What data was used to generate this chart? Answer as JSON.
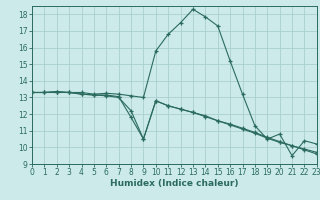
{
  "xlabel": "Humidex (Indice chaleur)",
  "bg_color": "#cceaea",
  "line_color": "#2a6b5e",
  "grid_color": "#aacfcf",
  "xlim": [
    0,
    23
  ],
  "ylim": [
    9,
    18.5
  ],
  "xticks": [
    0,
    1,
    2,
    3,
    4,
    5,
    6,
    7,
    8,
    9,
    10,
    11,
    12,
    13,
    14,
    15,
    16,
    17,
    18,
    19,
    20,
    21,
    22,
    23
  ],
  "yticks": [
    9,
    10,
    11,
    12,
    13,
    14,
    15,
    16,
    17,
    18
  ],
  "lines": [
    {
      "x": [
        0,
        1,
        2,
        3,
        4,
        5,
        6,
        7,
        8,
        9,
        10,
        11,
        12,
        13,
        14,
        15,
        16,
        17,
        18,
        19,
        20,
        21,
        22,
        23
      ],
      "y": [
        13.3,
        13.3,
        13.35,
        13.3,
        13.3,
        13.2,
        13.25,
        13.2,
        13.1,
        13.0,
        15.8,
        16.8,
        17.5,
        18.3,
        17.85,
        17.3,
        15.2,
        13.2,
        11.3,
        10.5,
        10.8,
        9.5,
        10.4,
        10.2
      ]
    },
    {
      "x": [
        0,
        1,
        2,
        3,
        4,
        5,
        6,
        7,
        8,
        9,
        10,
        11,
        12,
        13,
        14,
        15,
        16,
        17,
        18,
        19,
        20,
        21,
        22,
        23
      ],
      "y": [
        13.3,
        13.3,
        13.35,
        13.3,
        13.2,
        13.15,
        13.1,
        13.0,
        12.2,
        10.5,
        12.8,
        12.5,
        12.3,
        12.1,
        11.9,
        11.6,
        11.4,
        11.15,
        10.9,
        10.6,
        10.35,
        10.1,
        9.9,
        9.7
      ]
    },
    {
      "x": [
        0,
        1,
        2,
        3,
        4,
        5,
        6,
        7,
        8,
        9,
        10,
        11,
        12,
        13,
        14,
        15,
        16,
        17,
        18,
        19,
        20,
        21,
        22,
        23
      ],
      "y": [
        13.3,
        13.3,
        13.3,
        13.3,
        13.2,
        13.15,
        13.15,
        13.05,
        11.8,
        10.5,
        12.8,
        12.5,
        12.3,
        12.1,
        11.85,
        11.6,
        11.35,
        11.1,
        10.85,
        10.55,
        10.3,
        10.1,
        9.85,
        9.6
      ]
    }
  ]
}
